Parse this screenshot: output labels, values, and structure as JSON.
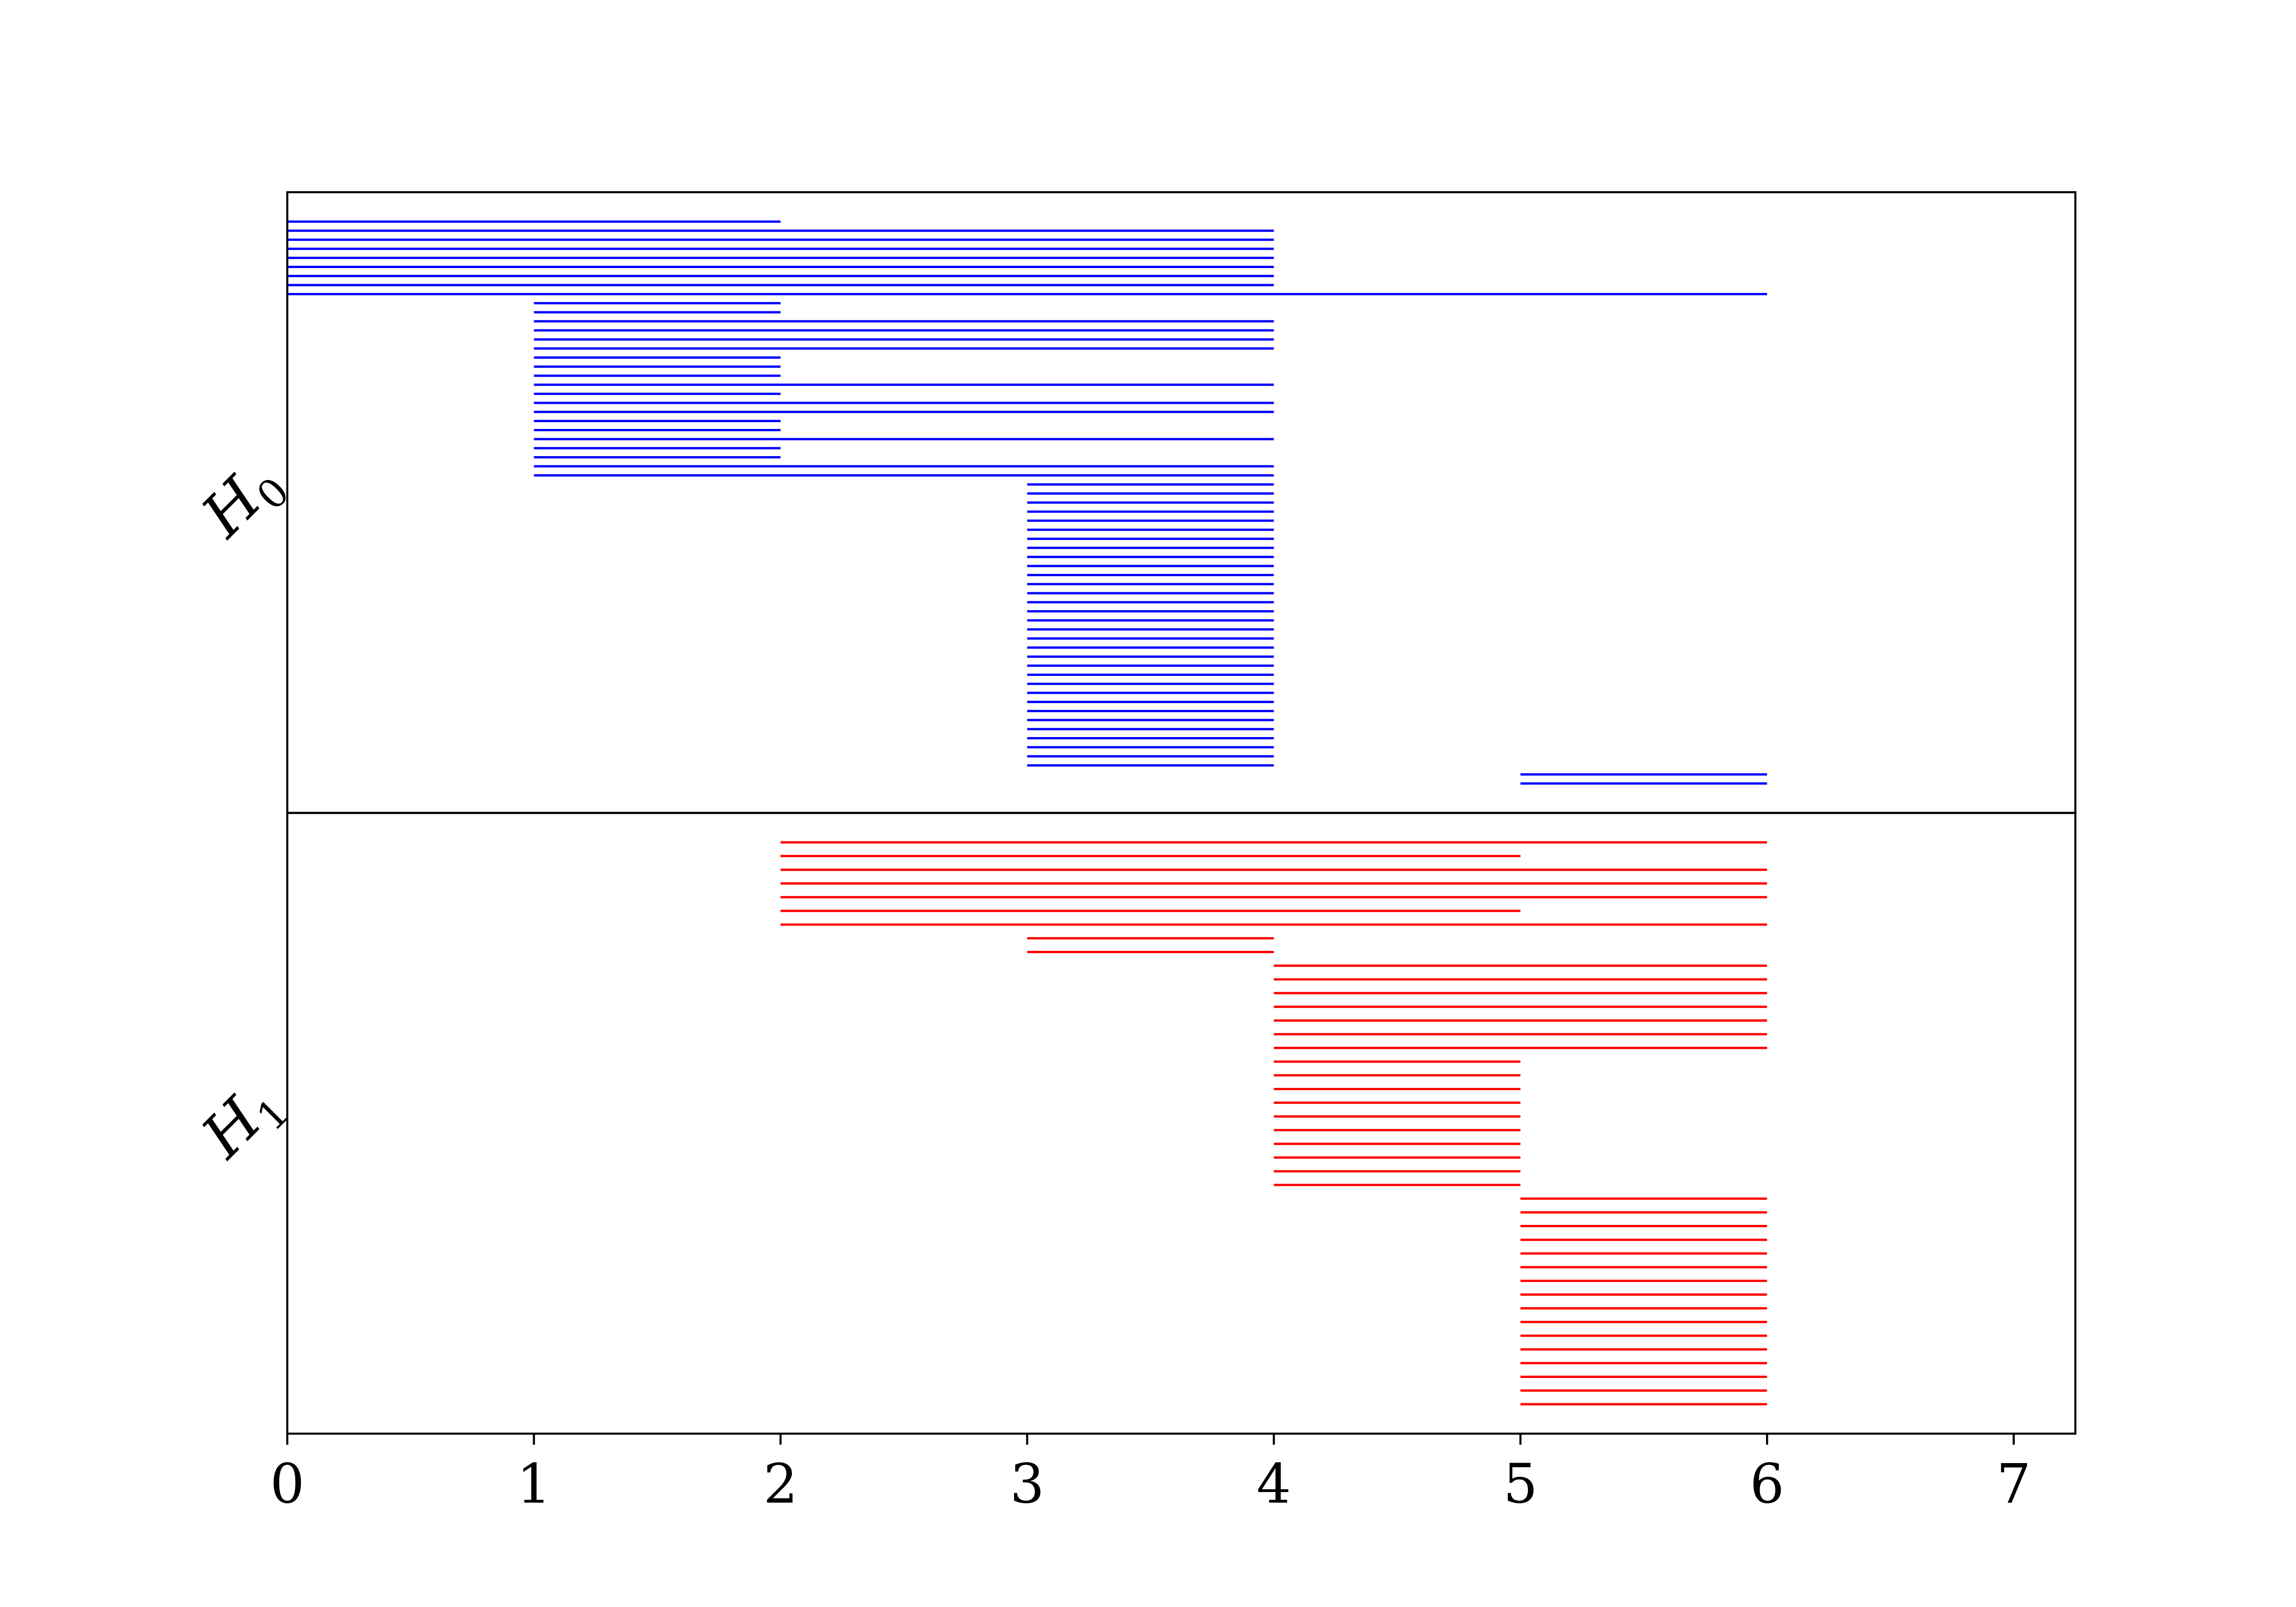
{
  "chart_data": {
    "type": "barcode",
    "xlim": [
      0,
      7.25
    ],
    "x_ticks": [
      "0",
      "1",
      "2",
      "3",
      "4",
      "5",
      "6",
      "7"
    ],
    "grid": false,
    "panels": [
      {
        "name": "H",
        "subscript": "0",
        "color": "#0000ff",
        "intervals": [
          [
            0,
            2
          ],
          [
            0,
            4
          ],
          [
            0,
            4
          ],
          [
            0,
            4
          ],
          [
            0,
            4
          ],
          [
            0,
            4
          ],
          [
            0,
            4
          ],
          [
            0,
            4
          ],
          [
            0,
            6
          ],
          [
            1,
            2
          ],
          [
            1,
            2
          ],
          [
            1,
            4
          ],
          [
            1,
            4
          ],
          [
            1,
            4
          ],
          [
            1,
            4
          ],
          [
            1,
            2
          ],
          [
            1,
            2
          ],
          [
            1,
            2
          ],
          [
            1,
            4
          ],
          [
            1,
            2
          ],
          [
            1,
            4
          ],
          [
            1,
            4
          ],
          [
            1,
            2
          ],
          [
            1,
            2
          ],
          [
            1,
            4
          ],
          [
            1,
            2
          ],
          [
            1,
            2
          ],
          [
            1,
            4
          ],
          [
            1,
            4
          ],
          [
            3,
            4
          ],
          [
            3,
            4
          ],
          [
            3,
            4
          ],
          [
            3,
            4
          ],
          [
            3,
            4
          ],
          [
            3,
            4
          ],
          [
            3,
            4
          ],
          [
            3,
            4
          ],
          [
            3,
            4
          ],
          [
            3,
            4
          ],
          [
            3,
            4
          ],
          [
            3,
            4
          ],
          [
            3,
            4
          ],
          [
            3,
            4
          ],
          [
            3,
            4
          ],
          [
            3,
            4
          ],
          [
            3,
            4
          ],
          [
            3,
            4
          ],
          [
            3,
            4
          ],
          [
            3,
            4
          ],
          [
            3,
            4
          ],
          [
            3,
            4
          ],
          [
            3,
            4
          ],
          [
            3,
            4
          ],
          [
            3,
            4
          ],
          [
            3,
            4
          ],
          [
            3,
            4
          ],
          [
            3,
            4
          ],
          [
            3,
            4
          ],
          [
            3,
            4
          ],
          [
            3,
            4
          ],
          [
            3,
            4
          ],
          [
            5,
            6
          ],
          [
            5,
            6
          ]
        ]
      },
      {
        "name": "H",
        "subscript": "1",
        "color": "#ff0000",
        "intervals": [
          [
            2,
            6
          ],
          [
            2,
            5
          ],
          [
            2,
            6
          ],
          [
            2,
            6
          ],
          [
            2,
            6
          ],
          [
            2,
            5
          ],
          [
            2,
            6
          ],
          [
            3,
            4
          ],
          [
            3,
            4
          ],
          [
            4,
            6
          ],
          [
            4,
            6
          ],
          [
            4,
            6
          ],
          [
            4,
            6
          ],
          [
            4,
            6
          ],
          [
            4,
            6
          ],
          [
            4,
            6
          ],
          [
            4,
            5
          ],
          [
            4,
            5
          ],
          [
            4,
            5
          ],
          [
            4,
            5
          ],
          [
            4,
            5
          ],
          [
            4,
            5
          ],
          [
            4,
            5
          ],
          [
            4,
            5
          ],
          [
            4,
            5
          ],
          [
            4,
            5
          ],
          [
            5,
            6
          ],
          [
            5,
            6
          ],
          [
            5,
            6
          ],
          [
            5,
            6
          ],
          [
            5,
            6
          ],
          [
            5,
            6
          ],
          [
            5,
            6
          ],
          [
            5,
            6
          ],
          [
            5,
            6
          ],
          [
            5,
            6
          ],
          [
            5,
            6
          ],
          [
            5,
            6
          ],
          [
            5,
            6
          ],
          [
            5,
            6
          ],
          [
            5,
            6
          ],
          [
            5,
            6
          ]
        ]
      }
    ]
  }
}
